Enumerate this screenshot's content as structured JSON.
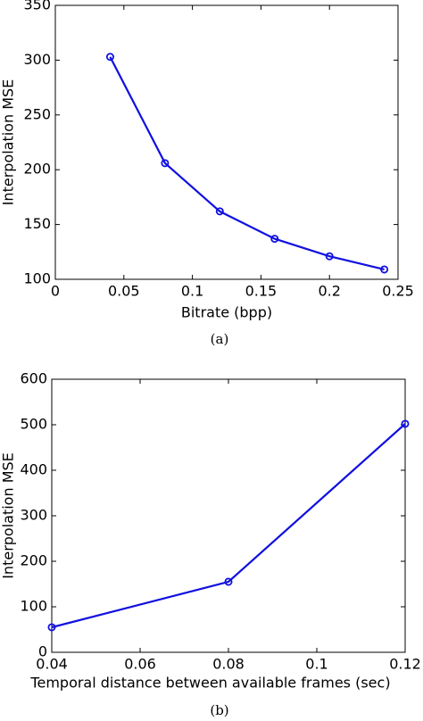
{
  "chart_data": [
    {
      "type": "line",
      "caption": "(a)",
      "x_label": "Bitrate (bpp)",
      "y_label": "Interpolation MSE",
      "x": [
        0.04,
        0.08,
        0.12,
        0.16,
        0.2,
        0.24
      ],
      "series": [
        {
          "color": "#1010e0",
          "values": [
            303,
            206,
            162,
            137,
            121,
            109
          ]
        }
      ],
      "xlim": [
        0,
        0.25
      ],
      "xticks": [
        0,
        0.05,
        0.1,
        0.15,
        0.2,
        0.25
      ],
      "ylim": [
        100,
        350
      ],
      "yticks": [
        100,
        150,
        200,
        250,
        300,
        350
      ]
    },
    {
      "type": "line",
      "caption": "(b)",
      "x_label": "Temporal distance between available frames (sec)",
      "y_label": "Interpolation MSE",
      "x": [
        0.04,
        0.08,
        0.12
      ],
      "series": [
        {
          "color": "#1010e0",
          "values": [
            55,
            155,
            502
          ]
        }
      ],
      "xlim": [
        0.04,
        0.12
      ],
      "xticks": [
        0.04,
        0.06,
        0.08,
        0.1,
        0.12
      ],
      "ylim": [
        0,
        600
      ],
      "yticks": [
        0,
        100,
        200,
        300,
        400,
        500,
        600
      ]
    }
  ]
}
